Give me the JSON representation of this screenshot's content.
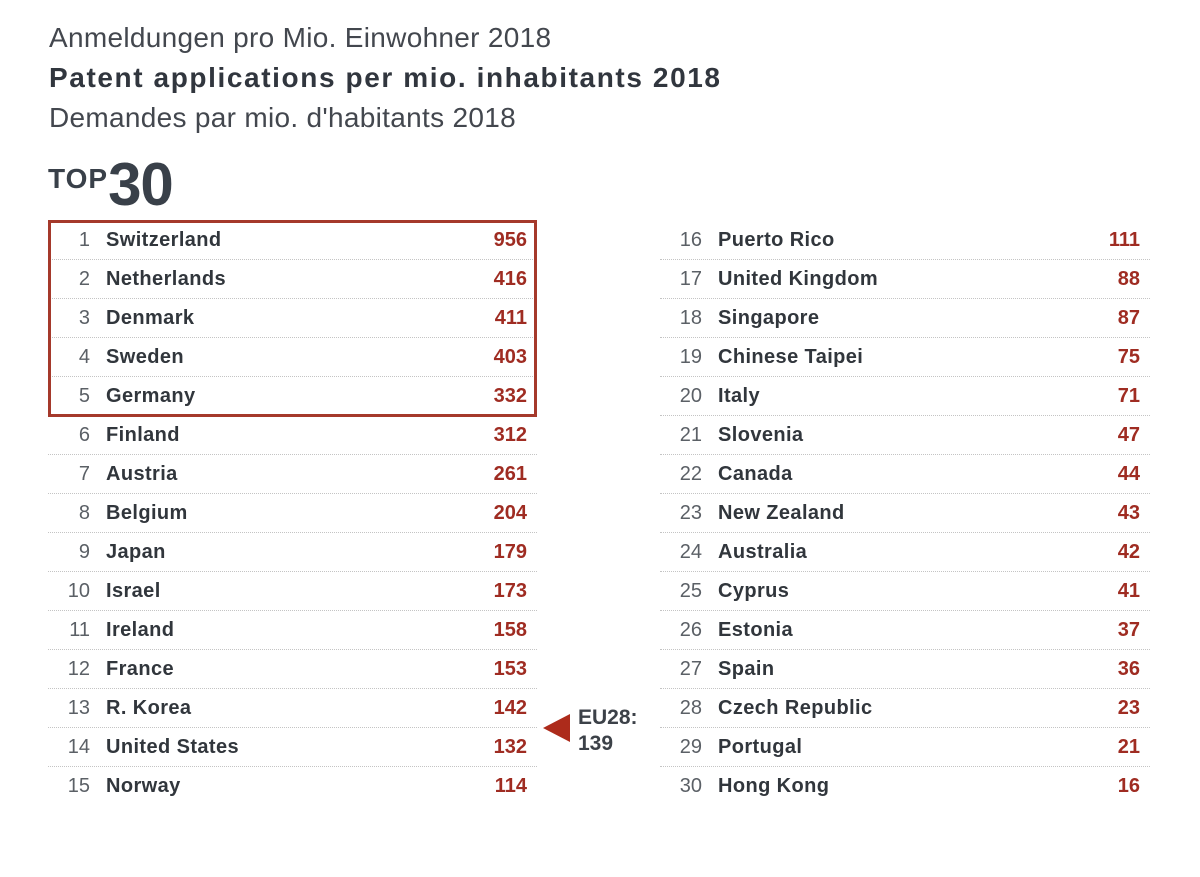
{
  "header": {
    "title_de": "Anmeldungen pro Mio. Einwohner 2018",
    "title_en": "Patent applications per mio. inhabitants 2018",
    "title_fr": "Demandes par mio. d'habitants 2018"
  },
  "top_badge": {
    "word": "TOP",
    "number": "30"
  },
  "eu_annotation": {
    "label": "EU28:",
    "value": "139"
  },
  "colors": {
    "accent_red_border": "#a5392b",
    "value_red": "#9f2c22",
    "triangle_red": "#ad2b1b",
    "country_text": "#31363c",
    "rank_gray": "#5b6066",
    "divider_gray": "#c4c4c4",
    "background": "#ffffff"
  },
  "chart_data": {
    "type": "table",
    "title": "Patent applications per mio. inhabitants 2018",
    "title_de": "Anmeldungen pro Mio. Einwohner 2018",
    "title_fr": "Demandes par mio. d'habitants 2018",
    "group_label": "TOP 30",
    "columns": [
      "rank",
      "country",
      "applications_per_mio_inhabitants"
    ],
    "highlighted_ranks": [
      1,
      2,
      3,
      4,
      5
    ],
    "annotation": {
      "label": "EU28:",
      "value": 139,
      "position": "between rank 13 and rank 14, left column right edge"
    },
    "entries": [
      {
        "rank": 1,
        "country": "Switzerland",
        "value": 956
      },
      {
        "rank": 2,
        "country": "Netherlands",
        "value": 416
      },
      {
        "rank": 3,
        "country": "Denmark",
        "value": 411
      },
      {
        "rank": 4,
        "country": "Sweden",
        "value": 403
      },
      {
        "rank": 5,
        "country": "Germany",
        "value": 332
      },
      {
        "rank": 6,
        "country": "Finland",
        "value": 312
      },
      {
        "rank": 7,
        "country": "Austria",
        "value": 261
      },
      {
        "rank": 8,
        "country": "Belgium",
        "value": 204
      },
      {
        "rank": 9,
        "country": "Japan",
        "value": 179
      },
      {
        "rank": 10,
        "country": "Israel",
        "value": 173
      },
      {
        "rank": 11,
        "country": "Ireland",
        "value": 158
      },
      {
        "rank": 12,
        "country": "France",
        "value": 153
      },
      {
        "rank": 13,
        "country": "R. Korea",
        "value": 142
      },
      {
        "rank": 14,
        "country": "United States",
        "value": 132
      },
      {
        "rank": 15,
        "country": "Norway",
        "value": 114
      },
      {
        "rank": 16,
        "country": "Puerto Rico",
        "value": 111
      },
      {
        "rank": 17,
        "country": "United Kingdom",
        "value": 88
      },
      {
        "rank": 18,
        "country": "Singapore",
        "value": 87
      },
      {
        "rank": 19,
        "country": "Chinese Taipei",
        "value": 75
      },
      {
        "rank": 20,
        "country": "Italy",
        "value": 71
      },
      {
        "rank": 21,
        "country": "Slovenia",
        "value": 47
      },
      {
        "rank": 22,
        "country": "Canada",
        "value": 44
      },
      {
        "rank": 23,
        "country": "New Zealand",
        "value": 43
      },
      {
        "rank": 24,
        "country": "Australia",
        "value": 42
      },
      {
        "rank": 25,
        "country": "Cyprus",
        "value": 41
      },
      {
        "rank": 26,
        "country": "Estonia",
        "value": 37
      },
      {
        "rank": 27,
        "country": "Spain",
        "value": 36
      },
      {
        "rank": 28,
        "country": "Czech Republic",
        "value": 23
      },
      {
        "rank": 29,
        "country": "Portugal",
        "value": 21
      },
      {
        "rank": 30,
        "country": "Hong Kong",
        "value": 16
      }
    ]
  }
}
